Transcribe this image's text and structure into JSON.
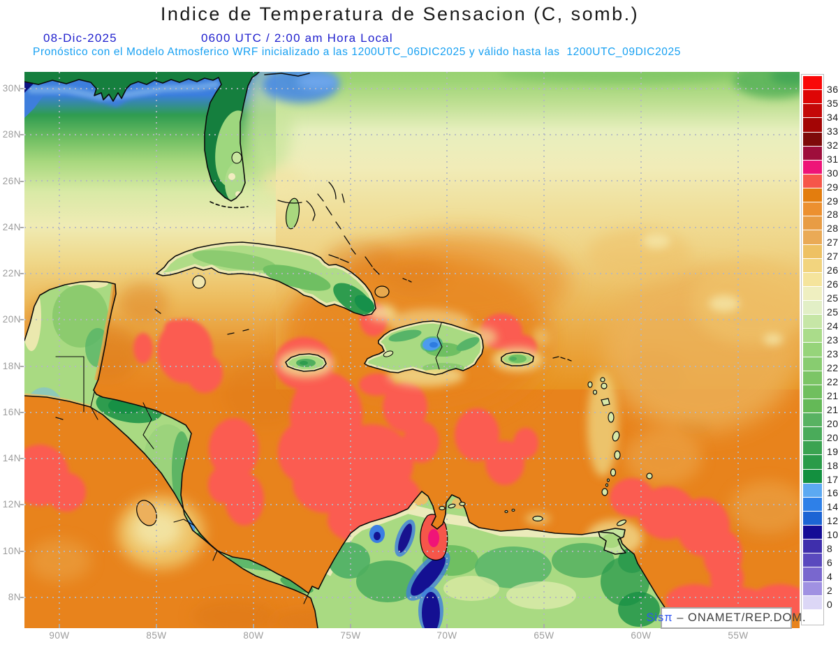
{
  "header": {
    "title": "Indice de Temperatura de Sensacion (C, somb.)",
    "date": "08-Dic-2025",
    "time": "0600 UTC / 2:00 am Hora Local",
    "forecast": "Pronóstico con el Modelo Atmosferico WRF inicializado a las 1200UTC_06DIC2025 y válido hasta las  1200UTC_09DIC2025"
  },
  "axes": {
    "lat": [
      "30N",
      "28N",
      "26N",
      "24N",
      "22N",
      "20N",
      "18N",
      "16N",
      "14N",
      "12N",
      "10N",
      "8N"
    ],
    "lon": [
      "90W",
      "85W",
      "80W",
      "75W",
      "70W",
      "65W",
      "60W",
      "55W"
    ]
  },
  "colorbar": {
    "labels": [
      "36",
      "35",
      "34",
      "33",
      "32",
      "31.5",
      "30.7",
      "29.7",
      "29",
      "28.5",
      "28",
      "27.5",
      "27",
      "26.5",
      "26",
      "25.5",
      "25",
      "24",
      "23.5",
      "23",
      "22.5",
      "22",
      "21.5",
      "21",
      "20.5",
      "20",
      "19",
      "18",
      "17",
      "16",
      "14",
      "12",
      "10",
      "8",
      "6",
      "4",
      "2",
      "0"
    ],
    "colors": [
      "#F90808",
      "#DE0606",
      "#C40808",
      "#A30505",
      "#7E0A0A",
      "#9E0E3C",
      "#EE1478",
      "#F6564A",
      "#E37D0E",
      "#EC9030",
      "#E89C44",
      "#EAAA56",
      "#EEC163",
      "#F2D47E",
      "#F5E49C",
      "#EFEFC0",
      "#E2EFC6",
      "#C6E6A6",
      "#AADC8A",
      "#96D47A",
      "#88CC70",
      "#7CC566",
      "#70BF5E",
      "#64B957",
      "#58B262",
      "#4AAB5A",
      "#3AA351",
      "#2A9B49",
      "#13903F",
      "#5CA9F2",
      "#2E80E8",
      "#1C64D4",
      "#140C96",
      "#3F2FAC",
      "#5A49BE",
      "#7967CE",
      "#A091E2",
      "#DCD7F6",
      "#FFFFFF"
    ]
  },
  "watermark": {
    "brand": "Sisπ",
    "text": "– ONAMET/REP.DOM."
  },
  "palette": {
    "sea_warm_orange": "#E8831C",
    "hot_patch_red": "#FB5B51",
    "land_green": "#A9DA82",
    "cold_front_blue": "#3E7EDC",
    "cold_navy": "#140C96",
    "title_black": "#191919",
    "date_blue": "#2121CE",
    "forecast_cyan": "#16A0F2",
    "axis_gray": "#9C9C9C"
  }
}
